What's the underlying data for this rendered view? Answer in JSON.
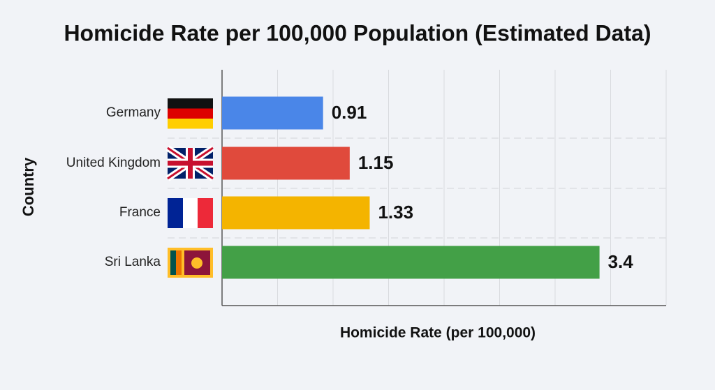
{
  "chart_data": {
    "type": "bar",
    "orientation": "horizontal",
    "title": "Homicide Rate per 100,000 Population (Estimated Data)",
    "x_label": "Homicide Rate (per 100,000)",
    "y_label": "Country",
    "categories": [
      "Germany",
      "United Kingdom",
      "France",
      "Sri Lanka"
    ],
    "values": [
      0.91,
      1.15,
      1.33,
      3.4
    ],
    "colors": [
      "#4a86e8",
      "#e04a3c",
      "#f4b400",
      "#43a047"
    ],
    "xlim": [
      0,
      4
    ],
    "xticks": [
      0,
      0.5,
      1,
      1.5,
      2,
      2.5,
      3,
      3.5,
      4
    ],
    "grid": true
  }
}
